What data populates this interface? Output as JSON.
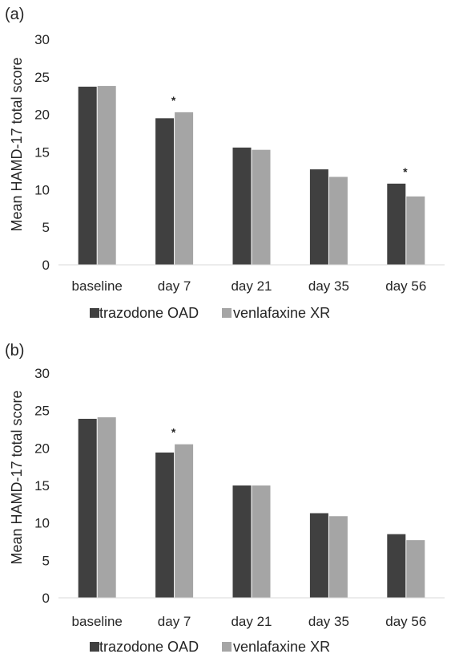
{
  "colors": {
    "trazodone": "#404040",
    "venlafaxine": "#a5a5a5",
    "text": "#262626"
  },
  "chart_data": [
    {
      "panel": "(a)",
      "type": "bar",
      "ylabel": "Mean HAMD-17 total score",
      "ylim": [
        0,
        30
      ],
      "yticks": [
        "0",
        "5",
        "10",
        "15",
        "20",
        "25",
        "30"
      ],
      "categories": [
        "baseline",
        "day 7",
        "day 21",
        "day 35",
        "day 56"
      ],
      "series": [
        {
          "name": "trazodone OAD",
          "values": [
            23.7,
            19.5,
            15.6,
            12.7,
            10.8
          ]
        },
        {
          "name": "venlafaxine XR",
          "values": [
            23.8,
            20.3,
            15.3,
            11.7,
            9.1
          ]
        }
      ],
      "significance": [
        {
          "category": "day 7",
          "mark": "*"
        },
        {
          "category": "day 56",
          "mark": "*"
        }
      ],
      "legend": {
        "position": "bottom",
        "entries": [
          "trazodone OAD",
          "venlafaxine XR"
        ]
      },
      "grid": false
    },
    {
      "panel": "(b)",
      "type": "bar",
      "ylabel": "Mean HAMD-17 total score",
      "ylim": [
        0,
        30
      ],
      "yticks": [
        "0",
        "5",
        "10",
        "15",
        "20",
        "25",
        "30"
      ],
      "categories": [
        "baseline",
        "day 7",
        "day 21",
        "day 35",
        "day 56"
      ],
      "series": [
        {
          "name": "trazodone OAD",
          "values": [
            23.9,
            19.4,
            15.0,
            11.3,
            8.5
          ]
        },
        {
          "name": "venlafaxine XR",
          "values": [
            24.1,
            20.5,
            15.0,
            10.9,
            7.7
          ]
        }
      ],
      "significance": [
        {
          "category": "day 7",
          "mark": "*"
        }
      ],
      "legend": {
        "position": "bottom",
        "entries": [
          "trazodone OAD",
          "venlafaxine XR"
        ]
      },
      "grid": false
    }
  ]
}
